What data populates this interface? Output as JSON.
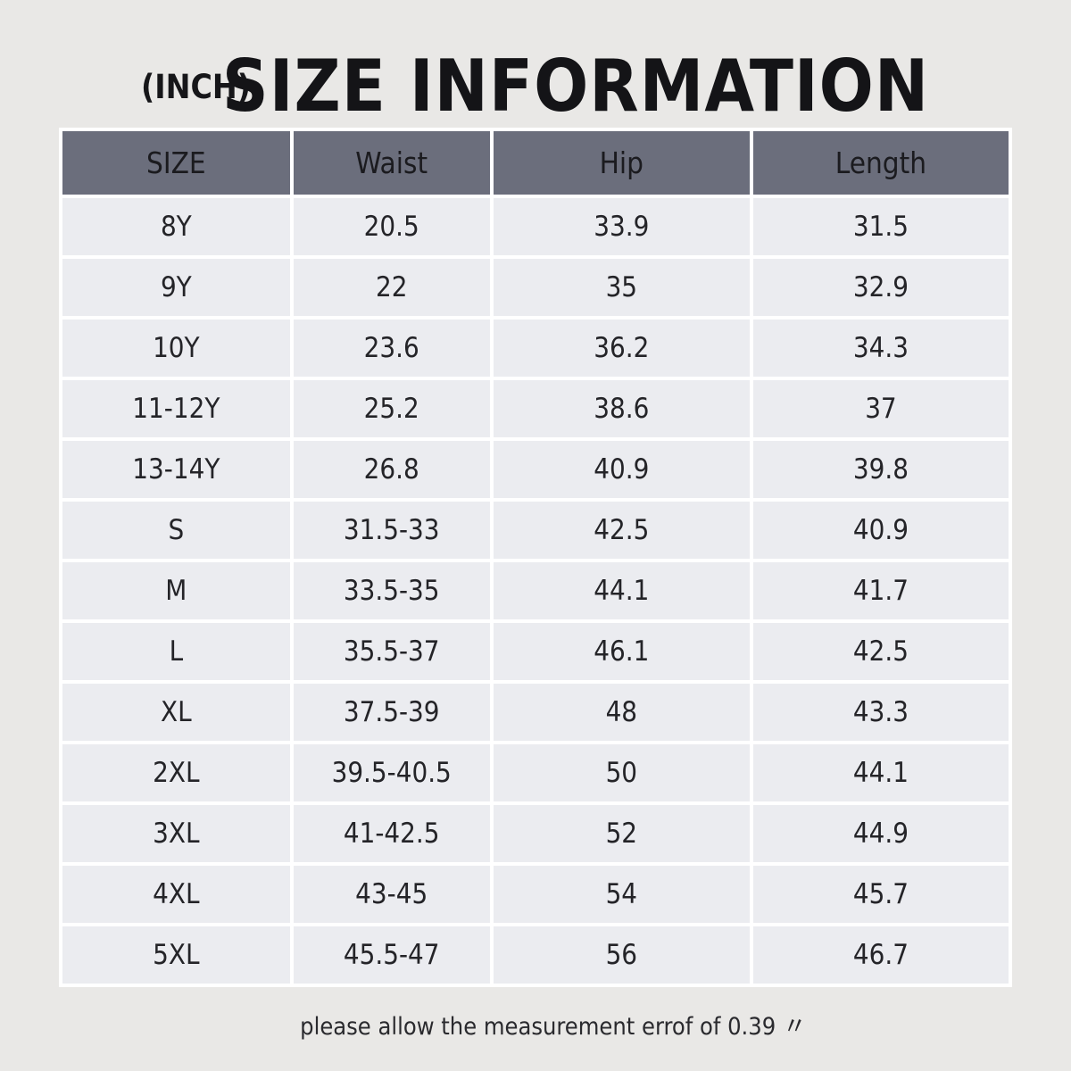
{
  "page": {
    "unit_label": "(INCH)",
    "title": "SIZE INFORMATION",
    "footer_note": "please allow the measurement errof of 0.39 〃"
  },
  "table": {
    "columns": [
      "SIZE",
      "Waist",
      "Hip",
      "Length"
    ],
    "rows": [
      {
        "size": "8Y",
        "waist": "20.5",
        "hip": "33.9",
        "length": "31.5"
      },
      {
        "size": "9Y",
        "waist": "22",
        "hip": "35",
        "length": "32.9"
      },
      {
        "size": "10Y",
        "waist": "23.6",
        "hip": "36.2",
        "length": "34.3"
      },
      {
        "size": "11-12Y",
        "waist": "25.2",
        "hip": "38.6",
        "length": "37"
      },
      {
        "size": "13-14Y",
        "waist": "26.8",
        "hip": "40.9",
        "length": "39.8"
      },
      {
        "size": "S",
        "waist": "31.5-33",
        "hip": "42.5",
        "length": "40.9"
      },
      {
        "size": "M",
        "waist": "33.5-35",
        "hip": "44.1",
        "length": "41.7"
      },
      {
        "size": "L",
        "waist": "35.5-37",
        "hip": "46.1",
        "length": "42.5"
      },
      {
        "size": "XL",
        "waist": "37.5-39",
        "hip": "48",
        "length": "43.3"
      },
      {
        "size": "2XL",
        "waist": "39.5-40.5",
        "hip": "50",
        "length": "44.1"
      },
      {
        "size": "3XL",
        "waist": "41-42.5",
        "hip": "52",
        "length": "44.9"
      },
      {
        "size": "4XL",
        "waist": "43-45",
        "hip": "54",
        "length": "45.7"
      },
      {
        "size": "5XL",
        "waist": "45.5-47",
        "hip": "56",
        "length": "46.7"
      }
    ]
  },
  "colors": {
    "page_bg": "#e9e8e6",
    "header_bg": "#6b6e7c",
    "cell_bg": "#ebecf0",
    "gap": "#ffffff",
    "title_text": "#141417",
    "body_text": "#242428"
  },
  "chart_data": {
    "type": "table",
    "title": "SIZE INFORMATION",
    "unit": "INCH",
    "columns": [
      "SIZE",
      "Waist",
      "Hip",
      "Length"
    ],
    "rows": [
      [
        "8Y",
        "20.5",
        "33.9",
        "31.5"
      ],
      [
        "9Y",
        "22",
        "35",
        "32.9"
      ],
      [
        "10Y",
        "23.6",
        "36.2",
        "34.3"
      ],
      [
        "11-12Y",
        "25.2",
        "38.6",
        "37"
      ],
      [
        "13-14Y",
        "26.8",
        "40.9",
        "39.8"
      ],
      [
        "S",
        "31.5-33",
        "42.5",
        "40.9"
      ],
      [
        "M",
        "33.5-35",
        "44.1",
        "41.7"
      ],
      [
        "L",
        "35.5-37",
        "46.1",
        "42.5"
      ],
      [
        "XL",
        "37.5-39",
        "48",
        "43.3"
      ],
      [
        "2XL",
        "39.5-40.5",
        "50",
        "44.1"
      ],
      [
        "3XL",
        "41-42.5",
        "52",
        "44.9"
      ],
      [
        "4XL",
        "43-45",
        "54",
        "45.7"
      ],
      [
        "5XL",
        "45.5-47",
        "56",
        "46.7"
      ]
    ],
    "note": "please allow the measurement errof of 0.39 〃",
    "layout": {
      "header_row": true,
      "grid": "white 4px gaps",
      "header_style": "dark slate fill"
    }
  }
}
